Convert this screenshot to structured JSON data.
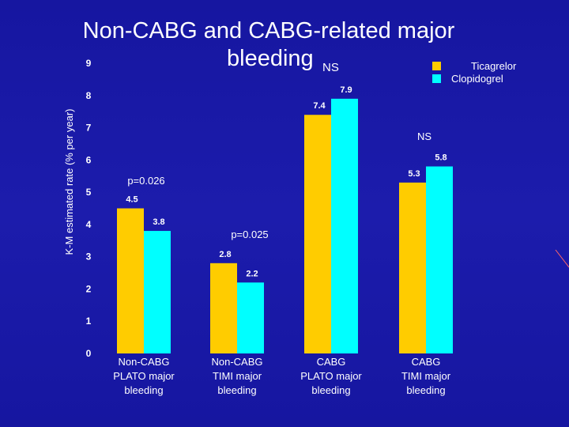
{
  "chart_data": {
    "type": "bar",
    "title": "Non-CABG and CABG-related major bleeding",
    "title_line1": "Non-CABG and CABG-related major",
    "title_line2": "bleeding",
    "title_suffix": "NS",
    "ylabel": "K-M estimated rate  (% per year)",
    "ylim": [
      0,
      9
    ],
    "yticks": [
      "0",
      "1",
      "2",
      "3",
      "4",
      "5",
      "6",
      "7",
      "8",
      "9"
    ],
    "categories": [
      [
        "Non-CABG",
        "PLATO major",
        "bleeding"
      ],
      [
        "Non-CABG",
        "TIMI major",
        "bleeding"
      ],
      [
        "CABG",
        "PLATO major",
        "bleeding"
      ],
      [
        "CABG",
        "TIMI major",
        "bleeding"
      ]
    ],
    "series": [
      {
        "name": "Ticagrelor",
        "color": "#ffcc00",
        "values": [
          4.5,
          2.8,
          7.4,
          5.3
        ],
        "labels": [
          "4.5",
          "2.8",
          "7.4",
          "5.3"
        ]
      },
      {
        "name": "Clopidogrel",
        "color": "#00ffff",
        "values": [
          3.8,
          2.2,
          7.9,
          5.8
        ],
        "labels": [
          "3.8",
          "2.2",
          "7.9",
          "5.8"
        ]
      }
    ],
    "annotations": [
      "p=0.026",
      "p=0.025",
      "NS"
    ],
    "legend_position": "top-right",
    "grid": false
  }
}
